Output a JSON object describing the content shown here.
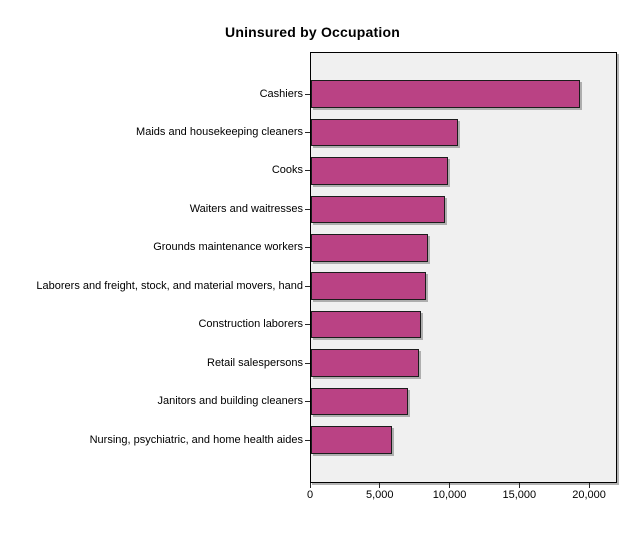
{
  "chart_data": {
    "type": "bar",
    "orientation": "horizontal",
    "title": "Uninsured by Occupation",
    "categories": [
      "Cashiers",
      "Maids and housekeeping cleaners",
      "Cooks",
      "Waiters and waitresses",
      "Grounds maintenance workers",
      "Laborers and freight, stock, and material movers, hand",
      "Construction laborers",
      "Retail salespersons",
      "Janitors and building cleaners",
      "Nursing, psychiatric, and home health aides"
    ],
    "values": [
      19300,
      10500,
      9800,
      9600,
      8400,
      8250,
      7900,
      7750,
      6950,
      5800
    ],
    "xlabel": "",
    "ylabel": "",
    "xlim": [
      0,
      22000
    ],
    "xticks": [
      0,
      5000,
      10000,
      15000,
      20000
    ],
    "xtick_labels": [
      "0",
      "5,000",
      "10,000",
      "15,000",
      "20,000"
    ],
    "legend": "none",
    "grid": false,
    "colors": {
      "bar_fill": "#BA4284",
      "bar_border": "#1C1C1C",
      "plot_background": "#F0F0F0",
      "frame_border": "#000000",
      "text": "#000000"
    }
  }
}
